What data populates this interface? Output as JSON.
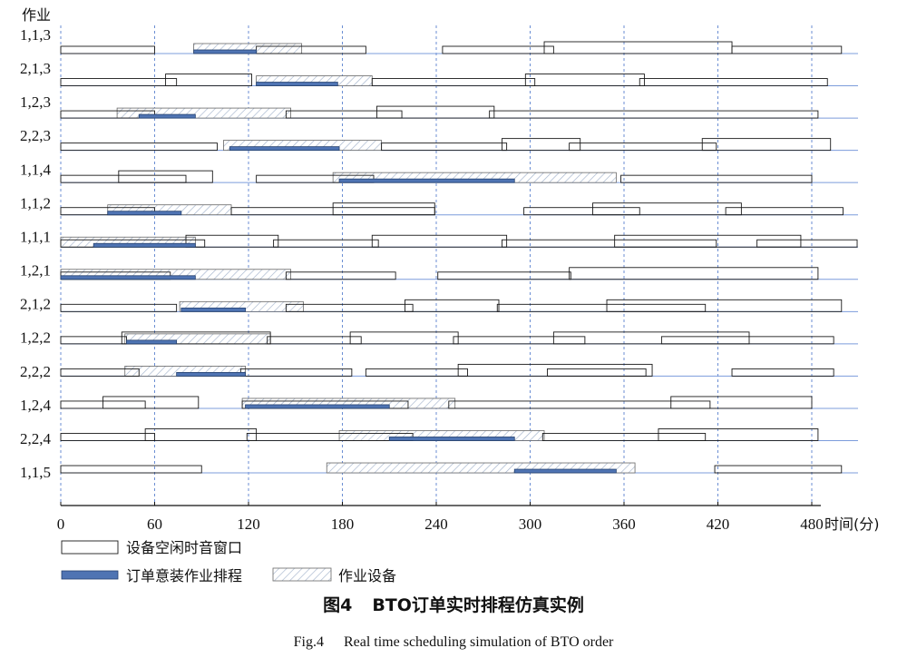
{
  "chart_data": {
    "type": "bar",
    "ylabel": "作业",
    "xlabel": "时间(分)",
    "xticks": [
      0,
      60,
      120,
      180,
      240,
      300,
      360,
      420,
      480
    ],
    "xlim": [
      0,
      480
    ],
    "grid": true,
    "legend": {
      "idle": "设备空闲时音窗口",
      "schedule": "订单意装作业排程",
      "equipment": "作业设备"
    },
    "colors": {
      "schedule": "#4f74b3",
      "guide": "#6b8ed3"
    },
    "rows": [
      {
        "job": "1,1,3",
        "idle": [
          [
            0,
            60
          ],
          [
            125,
            195
          ],
          [
            244,
            315
          ],
          [
            309,
            429
          ],
          [
            429,
            499
          ]
        ],
        "equipment": [
          [
            85,
            154
          ]
        ],
        "schedule": [
          [
            85,
            125
          ]
        ]
      },
      {
        "job": "2,1,3",
        "idle": [
          [
            0,
            74
          ],
          [
            67,
            122
          ],
          [
            199,
            303
          ],
          [
            297,
            373
          ],
          [
            370,
            490
          ]
        ],
        "equipment": [
          [
            125,
            199
          ]
        ],
        "schedule": [
          [
            125,
            177
          ]
        ]
      },
      {
        "job": "1,2,3",
        "idle": [
          [
            0,
            60
          ],
          [
            144,
            218
          ],
          [
            202,
            277
          ],
          [
            274,
            484
          ]
        ],
        "equipment": [
          [
            36,
            147
          ]
        ],
        "schedule": [
          [
            50,
            86
          ]
        ]
      },
      {
        "job": "2,2,3",
        "idle": [
          [
            0,
            100
          ],
          [
            205,
            285
          ],
          [
            282,
            332
          ],
          [
            325,
            419
          ],
          [
            410,
            492
          ]
        ],
        "equipment": [
          [
            104,
            205
          ]
        ],
        "schedule": [
          [
            108,
            178
          ]
        ]
      },
      {
        "job": "1,1,4",
        "idle": [
          [
            0,
            80
          ],
          [
            37,
            97
          ],
          [
            125,
            200
          ],
          [
            358,
            480
          ]
        ],
        "equipment": [
          [
            174,
            355
          ]
        ],
        "schedule": [
          [
            178,
            290
          ]
        ]
      },
      {
        "job": "1,1,2",
        "idle": [
          [
            0,
            60
          ],
          [
            109,
            239
          ],
          [
            174,
            239
          ],
          [
            296,
            370
          ],
          [
            340,
            435
          ],
          [
            425,
            500
          ]
        ],
        "equipment": [
          [
            30,
            109
          ]
        ],
        "schedule": [
          [
            30,
            77
          ]
        ]
      },
      {
        "job": "1,1,1",
        "idle": [
          [
            0,
            92
          ],
          [
            80,
            139
          ],
          [
            136,
            203
          ],
          [
            199,
            285
          ],
          [
            282,
            419
          ],
          [
            354,
            473
          ],
          [
            445,
            509
          ]
        ],
        "equipment": [
          [
            0,
            86
          ]
        ],
        "schedule": [
          [
            21,
            86
          ]
        ]
      },
      {
        "job": "1,2,1",
        "idle": [
          [
            0,
            70
          ],
          [
            144,
            214
          ],
          [
            241,
            326
          ],
          [
            325,
            484
          ]
        ],
        "equipment": [
          [
            0,
            147
          ]
        ],
        "schedule": [
          [
            0,
            86
          ]
        ]
      },
      {
        "job": "2,1,2",
        "idle": [
          [
            0,
            74
          ],
          [
            144,
            225
          ],
          [
            220,
            280
          ],
          [
            279,
            412
          ],
          [
            349,
            499
          ]
        ],
        "equipment": [
          [
            76,
            155
          ]
        ],
        "schedule": [
          [
            77,
            118
          ]
        ]
      },
      {
        "job": "1,2,2",
        "idle": [
          [
            0,
            42
          ],
          [
            39,
            134
          ],
          [
            132,
            192
          ],
          [
            185,
            254
          ],
          [
            251,
            335
          ],
          [
            315,
            440
          ],
          [
            384,
            494
          ]
        ],
        "equipment": [
          [
            41,
            134
          ]
        ],
        "schedule": [
          [
            42,
            74
          ]
        ]
      },
      {
        "job": "2,2,2",
        "idle": [
          [
            0,
            50
          ],
          [
            115,
            186
          ],
          [
            195,
            260
          ],
          [
            254,
            378
          ],
          [
            311,
            374
          ],
          [
            429,
            494
          ]
        ],
        "equipment": [
          [
            41,
            118
          ]
        ],
        "schedule": [
          [
            74,
            118
          ]
        ]
      },
      {
        "job": "1,2,4",
        "idle": [
          [
            0,
            54
          ],
          [
            27,
            88
          ],
          [
            116,
            222
          ],
          [
            248,
            415
          ],
          [
            390,
            480
          ]
        ],
        "equipment": [
          [
            116,
            252
          ]
        ],
        "schedule": [
          [
            118,
            210
          ]
        ]
      },
      {
        "job": "2,2,4",
        "idle": [
          [
            0,
            60
          ],
          [
            54,
            125
          ],
          [
            119,
            225
          ],
          [
            308,
            412
          ],
          [
            382,
            484
          ]
        ],
        "equipment": [
          [
            178,
            309
          ]
        ],
        "schedule": [
          [
            210,
            290
          ]
        ]
      },
      {
        "job": "1,1,5",
        "idle": [
          [
            0,
            90
          ],
          [
            418,
            499
          ]
        ],
        "equipment": [
          [
            170,
            367
          ]
        ],
        "schedule": [
          [
            290,
            355
          ]
        ]
      }
    ]
  },
  "figure": {
    "number_cn": "图4",
    "title_cn": "BTO订单实时排程仿真实例",
    "number_en": "Fig.4",
    "title_en": "Real time scheduling simulation of BTO order"
  }
}
